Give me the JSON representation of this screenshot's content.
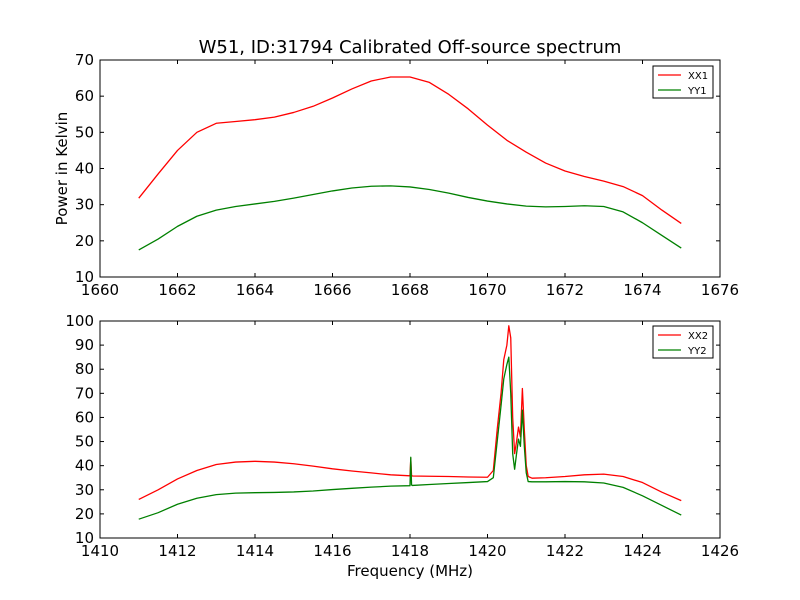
{
  "title": "W51, ID:31794 Calibrated Off-source spectrum",
  "chart_data": [
    {
      "type": "line",
      "xlabel": "",
      "ylabel": "Power in Kelvin",
      "xlim": [
        1660,
        1676
      ],
      "ylim": [
        10,
        70
      ],
      "xticks": [
        1660,
        1662,
        1664,
        1666,
        1668,
        1670,
        1672,
        1674,
        1676
      ],
      "yticks": [
        10,
        20,
        30,
        40,
        50,
        60,
        70
      ],
      "legend": "top-right",
      "series": [
        {
          "name": "XX1",
          "color": "#ff0000",
          "x": [
            1661,
            1661.5,
            1662,
            1662.5,
            1663,
            1663.5,
            1664,
            1664.5,
            1665,
            1665.5,
            1666,
            1666.5,
            1667,
            1667.5,
            1668,
            1668.5,
            1669,
            1669.5,
            1670,
            1670.5,
            1671,
            1671.5,
            1672,
            1672.5,
            1673,
            1673.5,
            1674,
            1674.5,
            1675
          ],
          "y": [
            31.8,
            38.5,
            45,
            50,
            52.5,
            53,
            53.5,
            54.2,
            55.5,
            57.2,
            59.5,
            62,
            64.2,
            65.3,
            65.3,
            63.8,
            60.5,
            56.5,
            52,
            47.8,
            44.5,
            41.5,
            39.3,
            37.8,
            36.5,
            35,
            32.5,
            28.5,
            24.8
          ]
        },
        {
          "name": "YY1",
          "color": "#008000",
          "x": [
            1661,
            1661.5,
            1662,
            1662.5,
            1663,
            1663.5,
            1664,
            1664.5,
            1665,
            1665.5,
            1666,
            1666.5,
            1667,
            1667.5,
            1668,
            1668.5,
            1669,
            1669.5,
            1670,
            1670.5,
            1671,
            1671.5,
            1672,
            1672.5,
            1673,
            1673.5,
            1674,
            1674.5,
            1675
          ],
          "y": [
            17.5,
            20.5,
            24,
            26.8,
            28.5,
            29.5,
            30.2,
            30.9,
            31.8,
            32.8,
            33.8,
            34.6,
            35.1,
            35.2,
            34.9,
            34.2,
            33.2,
            32,
            31,
            30.2,
            29.6,
            29.4,
            29.5,
            29.7,
            29.5,
            28,
            25,
            21.5,
            18
          ]
        }
      ]
    },
    {
      "type": "line",
      "xlabel": "Frequency (MHz)",
      "ylabel": "",
      "xlim": [
        1410,
        1426
      ],
      "ylim": [
        10,
        100
      ],
      "xticks": [
        1410,
        1412,
        1414,
        1416,
        1418,
        1420,
        1422,
        1424,
        1426
      ],
      "yticks": [
        10,
        20,
        30,
        40,
        50,
        60,
        70,
        80,
        90,
        100
      ],
      "legend": "top-right",
      "series": [
        {
          "name": "XX2",
          "color": "#ff0000",
          "x": [
            1411,
            1411.5,
            1412,
            1412.5,
            1413,
            1413.5,
            1414,
            1414.5,
            1415,
            1415.5,
            1416,
            1416.5,
            1417,
            1417.5,
            1418,
            1418.02,
            1418.04,
            1418.06,
            1418.5,
            1419,
            1419.5,
            1420,
            1420.15,
            1420.25,
            1420.35,
            1420.42,
            1420.5,
            1420.55,
            1420.6,
            1420.65,
            1420.7,
            1420.75,
            1420.8,
            1420.85,
            1420.9,
            1420.95,
            1421,
            1421.05,
            1421.15,
            1421.5,
            1422,
            1422.5,
            1423,
            1423.5,
            1424,
            1424.5,
            1425
          ],
          "y": [
            26,
            30,
            34.5,
            38,
            40.5,
            41.5,
            41.8,
            41.5,
            40.8,
            39.8,
            38.7,
            37.8,
            37,
            36.2,
            35.8,
            43,
            36,
            35.7,
            35.6,
            35.5,
            35.3,
            35.2,
            38,
            55,
            70,
            84,
            90,
            98,
            93,
            60,
            45,
            50,
            56,
            52,
            72,
            55,
            40,
            35.5,
            34.8,
            35,
            35.5,
            36.2,
            36.5,
            35.5,
            33,
            29,
            25.5
          ]
        },
        {
          "name": "YY2",
          "color": "#008000",
          "x": [
            1411,
            1411.5,
            1412,
            1412.5,
            1413,
            1413.5,
            1414,
            1414.5,
            1415,
            1415.5,
            1416,
            1416.5,
            1417,
            1417.5,
            1418,
            1418.02,
            1418.04,
            1418.06,
            1418.5,
            1419,
            1419.5,
            1420,
            1420.15,
            1420.25,
            1420.35,
            1420.42,
            1420.5,
            1420.55,
            1420.6,
            1420.65,
            1420.7,
            1420.75,
            1420.8,
            1420.85,
            1420.9,
            1420.95,
            1421,
            1421.05,
            1421.15,
            1421.5,
            1422,
            1422.5,
            1423,
            1423.5,
            1424,
            1424.5,
            1425
          ],
          "y": [
            17.8,
            20.5,
            24,
            26.5,
            28,
            28.6,
            28.8,
            28.9,
            29.1,
            29.5,
            30.1,
            30.6,
            31.1,
            31.5,
            31.7,
            43.5,
            32,
            31.8,
            32.2,
            32.6,
            33,
            33.4,
            35,
            50,
            65,
            76,
            82,
            85,
            70,
            45,
            38.5,
            45,
            51,
            48,
            63,
            48,
            37,
            33.4,
            33.3,
            33.3,
            33.4,
            33.3,
            32.8,
            31,
            27.5,
            23.5,
            19.5
          ]
        }
      ]
    }
  ]
}
